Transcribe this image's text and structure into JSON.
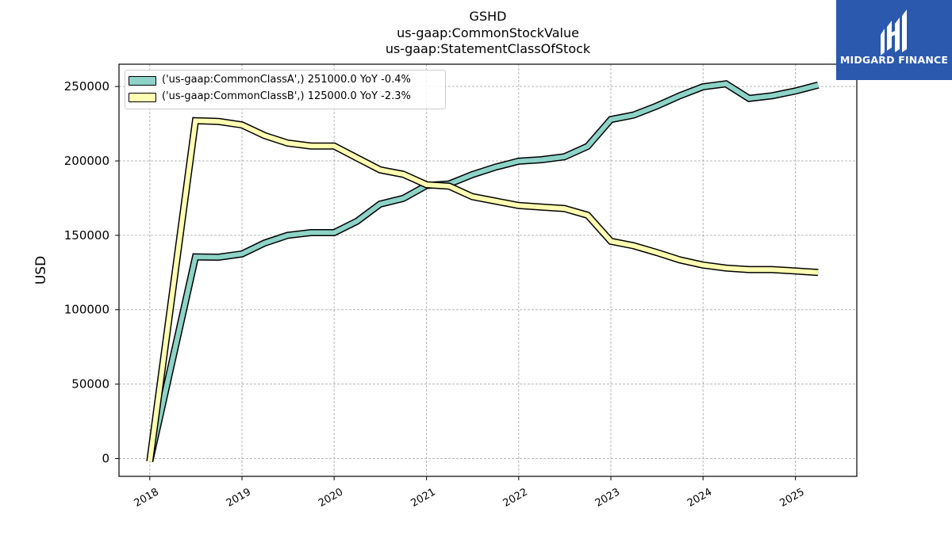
{
  "chart_data": {
    "type": "line",
    "title_lines": [
      "GSHD",
      "us-gaap:CommonStockValue",
      "us-gaap:StatementClassOfStock"
    ],
    "xlabel": "",
    "ylabel": "USD",
    "xlim": [
      "2017-09-01",
      "2025-09-01"
    ],
    "ylim": [
      -12000,
      265000
    ],
    "x_ticks": [
      "2018",
      "2019",
      "2020",
      "2021",
      "2022",
      "2023",
      "2024",
      "2025"
    ],
    "y_ticks": [
      0,
      50000,
      100000,
      150000,
      200000,
      250000
    ],
    "y_tick_labels": [
      "0",
      "50000",
      "100000",
      "150000",
      "200000",
      "250000"
    ],
    "grid": true,
    "legend_position": "top-left",
    "x": [
      "2018-01-01",
      "2018-07-01",
      "2018-10-01",
      "2019-01-01",
      "2019-04-01",
      "2019-07-01",
      "2019-10-01",
      "2020-01-01",
      "2020-04-01",
      "2020-07-01",
      "2020-10-01",
      "2021-01-01",
      "2021-04-01",
      "2021-07-01",
      "2021-10-01",
      "2022-01-01",
      "2022-04-01",
      "2022-07-01",
      "2022-10-01",
      "2023-01-01",
      "2023-04-01",
      "2023-07-01",
      "2023-10-01",
      "2024-01-01",
      "2024-04-01",
      "2024-07-01",
      "2024-10-01",
      "2025-01-01",
      "2025-04-01"
    ],
    "series": [
      {
        "name": "('us-gaap:CommonClassA',) 251000.0 YoY -0.4%",
        "color": "#8dd3c7",
        "values": [
          -2000,
          135500,
          135300,
          137500,
          144800,
          150000,
          151800,
          151800,
          159500,
          171000,
          174800,
          183500,
          184500,
          190800,
          195800,
          199800,
          200800,
          202800,
          209800,
          227800,
          230800,
          236800,
          243800,
          249800,
          251800,
          242000,
          243800,
          247000,
          251000
        ]
      },
      {
        "name": "('us-gaap:CommonClassB',) 125000.0 YoY -2.3%",
        "color": "#ffffb3",
        "values": [
          -2000,
          227000,
          226500,
          224200,
          217000,
          212000,
          210000,
          210000,
          202000,
          194000,
          191000,
          184000,
          183000,
          176000,
          173000,
          170000,
          169000,
          168000,
          163500,
          146000,
          143000,
          138500,
          133500,
          130000,
          128000,
          127000,
          127000,
          126000,
          125000
        ]
      }
    ]
  },
  "logo": {
    "text": "MIDGARD FINANCE"
  }
}
